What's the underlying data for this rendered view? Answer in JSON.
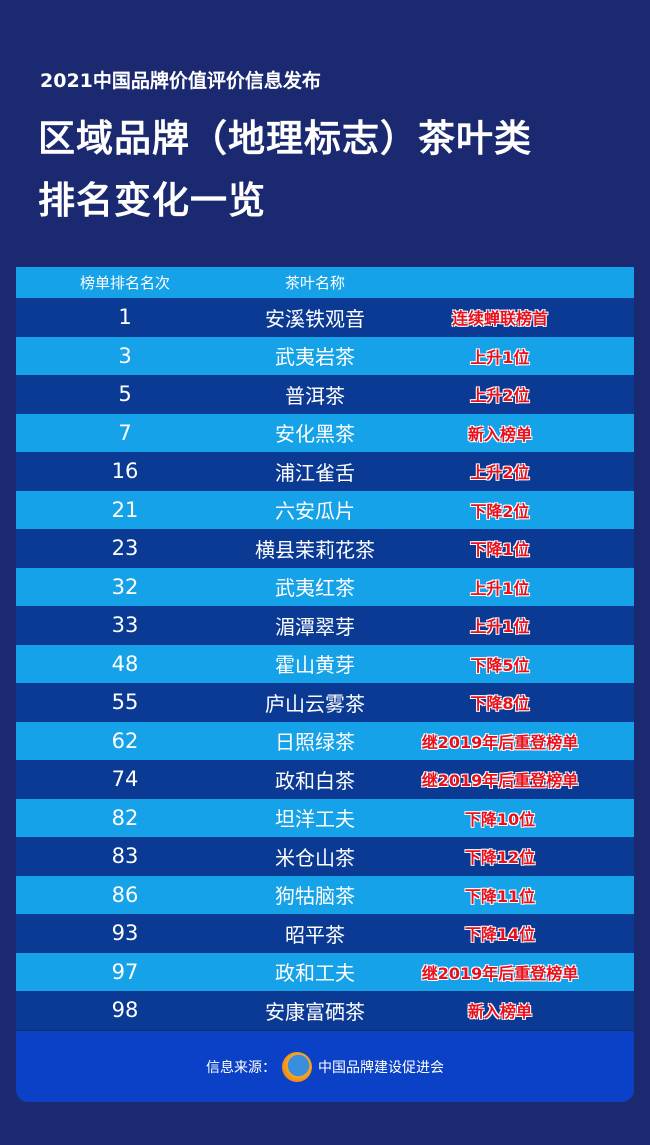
{
  "header": {
    "subtitle": "2021中国品牌价值评价信息发布",
    "title_line1": "区域品牌（地理标志）茶叶类",
    "title_line2": "排名变化一览"
  },
  "table": {
    "columns": [
      "榜单排名名次",
      "茶叶名称",
      ""
    ],
    "rows": [
      {
        "rank": "1",
        "name": "安溪铁观音",
        "change": "连续蝉联榜首"
      },
      {
        "rank": "3",
        "name": "武夷岩茶",
        "change": "上升1位"
      },
      {
        "rank": "5",
        "name": "普洱茶",
        "change": "上升2位"
      },
      {
        "rank": "7",
        "name": "安化黑茶",
        "change": "新入榜单"
      },
      {
        "rank": "16",
        "name": "浦江雀舌",
        "change": "上升2位"
      },
      {
        "rank": "21",
        "name": "六安瓜片",
        "change": "下降2位"
      },
      {
        "rank": "23",
        "name": "横县茉莉花茶",
        "change": "下降1位"
      },
      {
        "rank": "32",
        "name": "武夷红茶",
        "change": "上升1位"
      },
      {
        "rank": "33",
        "name": "湄潭翠芽",
        "change": "上升1位"
      },
      {
        "rank": "48",
        "name": "霍山黄芽",
        "change": "下降5位"
      },
      {
        "rank": "55",
        "name": "庐山云雾茶",
        "change": "下降8位"
      },
      {
        "rank": "62",
        "name": "日照绿茶",
        "change": "继2019年后重登榜单"
      },
      {
        "rank": "74",
        "name": "政和白茶",
        "change": "继2019年后重登榜单"
      },
      {
        "rank": "82",
        "name": "坦洋工夫",
        "change": "下降10位"
      },
      {
        "rank": "83",
        "name": "米仓山茶",
        "change": "下降12位"
      },
      {
        "rank": "86",
        "name": "狗牯脑茶",
        "change": "下降11位"
      },
      {
        "rank": "93",
        "name": "昭平茶",
        "change": "下降14位"
      },
      {
        "rank": "97",
        "name": "政和工夫",
        "change": "继2019年后重登榜单"
      },
      {
        "rank": "98",
        "name": "安康富硒茶",
        "change": "新入榜单"
      }
    ]
  },
  "footer": {
    "source_label": "信息来源：",
    "source_name": "中国品牌建设促进会",
    "logo_icon": "globe-logo-icon"
  },
  "colors": {
    "background": "#1b2a70",
    "row_dark": "#0b3a95",
    "row_light": "#15a2e8",
    "change_text": "#e8101c"
  }
}
